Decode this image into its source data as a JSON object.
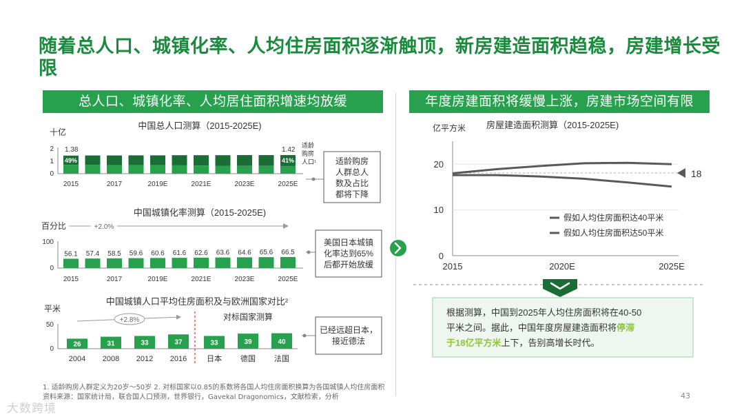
{
  "title": "随着总人口、城镇化率、人均住房面积逐渐触顶，新房建造面积趋稳，房建增长受限",
  "left_banner": "总人口、城镇化率、人均居住面积增速均放缓",
  "right_banner": "年度房建面积将缓慢上涨，房建市场空间有限",
  "colors": {
    "green": "#27a14d",
    "dark_green": "#1a6e35",
    "title_green": "#1a8a3c",
    "gray_line": "#595959"
  },
  "chart_data": [
    {
      "id": "population",
      "type": "bar",
      "title": "中国总人口测算（2015-2025E)",
      "ylabel": "十亿",
      "yticks": [
        "2",
        "1",
        "0"
      ],
      "ylim": [
        0,
        2
      ],
      "categories": [
        "2015",
        "",
        "2017",
        "",
        "2019E",
        "",
        "2021E",
        "",
        "2023E",
        "",
        "2025E"
      ],
      "series": [
        {
          "values": [
            1.38,
            1.39,
            1.39,
            1.4,
            1.4,
            1.41,
            1.41,
            1.41,
            1.42,
            1.42,
            1.42
          ]
        }
      ],
      "working_age_share": [
        0.49,
        0.48,
        0.47,
        0.46,
        0.46,
        0.45,
        0.44,
        0.43,
        0.42,
        0.42,
        0.41
      ],
      "data_labels": {
        "first_value": "1.38",
        "last_value": "1.42",
        "first_share": "49%",
        "last_share": "41%"
      },
      "legend_note": "适龄购房人口",
      "callout": "适龄购房人群总人数及占比都将下降"
    },
    {
      "id": "urbanization",
      "type": "bar",
      "title": "中国城镇化率测算（2015-2025E)",
      "ylabel": "百分比",
      "yticks": [
        "100",
        "0"
      ],
      "ylim": [
        0,
        100
      ],
      "growth_label": "+2.0%",
      "categories": [
        "2015",
        "",
        "2017",
        "",
        "2019E",
        "",
        "2021E",
        "",
        "2023E",
        "",
        "2025E"
      ],
      "values": [
        56.1,
        57.4,
        58.5,
        59.6,
        60.6,
        61.6,
        62.6,
        63.6,
        64.6,
        65.6,
        66.5
      ],
      "value_labels": [
        "56.1",
        "57.4",
        "58.5",
        "59.6",
        "60.6",
        "61.6",
        "62.6",
        "63.6",
        "64.6",
        "65.6",
        "66.5"
      ],
      "callout": "美国日本城镇化率达到65%后都开始放缓"
    },
    {
      "id": "living_area",
      "type": "bar",
      "title": "中国城镇人口平均住房面积及与欧洲国家对比²",
      "ylabel": "平米",
      "yticks": [
        "50",
        "0"
      ],
      "ylim": [
        0,
        50
      ],
      "growth_label": "+2.8%",
      "benchmark_label": "对标国家测算",
      "categories": [
        "2004",
        "2008",
        "2012",
        "2016",
        "日本",
        "德国",
        "法国"
      ],
      "values": [
        26,
        31,
        33,
        37,
        33,
        39,
        40
      ],
      "value_labels": [
        "26",
        "31",
        "33",
        "37",
        "33",
        "39",
        "40"
      ],
      "callout": "已经远超日本，接近德法"
    },
    {
      "id": "construction",
      "type": "line",
      "title": "房屋建造面积测算（2015-2025E)",
      "ylabel": "亿平方米",
      "ylim": [
        0,
        25
      ],
      "yticks": [
        "20",
        "10",
        "0"
      ],
      "x": [
        "2015",
        "2020E",
        "2025E"
      ],
      "series": [
        {
          "name": "假如人均住房面积达40平米",
          "x": [
            2015,
            2017,
            2019,
            2021,
            2023,
            2025
          ],
          "values": [
            18.0,
            18.9,
            19.6,
            20.2,
            20.3,
            20.0
          ]
        },
        {
          "name": "假如人均住房面积达50平米",
          "x": [
            2015,
            2017,
            2019,
            2021,
            2023,
            2025
          ],
          "values": [
            17.6,
            17.6,
            17.3,
            16.8,
            16.0,
            15.1
          ]
        }
      ],
      "reference_value": "18",
      "legend_position": "center-right"
    }
  ],
  "conclusion": {
    "text_part1": "根据测算，中国到2025年人均住房面积将在40-50平米之间。据此，中国年度房屋建造面积将",
    "highlight": "停滞于18亿平方米",
    "text_part2": "上下，告别高增长时代。"
  },
  "footnote_line1": "1. 适龄购房人群定义为20岁～50岁  2. 对标国家以0.85的系数将各国人均住房面积换算为各国城镇人均住房面积",
  "footnote_line2": "资料来源：国家统计局，联合国人口预测，世界银行，Gavekal Dragonomics，文献检索，分析",
  "page_number": "43",
  "watermark": "大数跨境"
}
